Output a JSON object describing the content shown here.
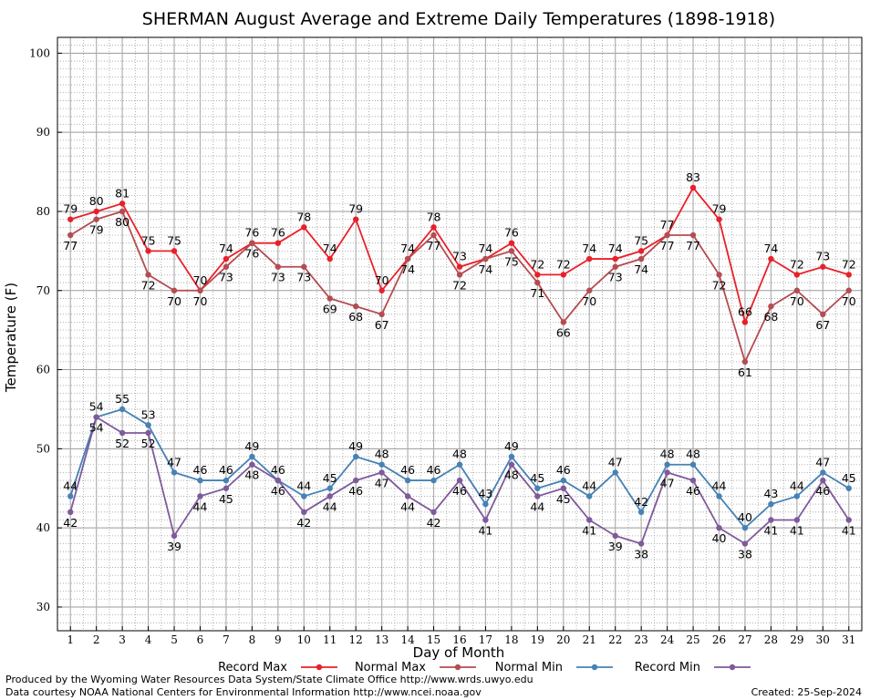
{
  "chart_data": {
    "type": "line",
    "title": "SHERMAN August Average and Extreme Daily Temperatures (1898-1918)",
    "xlabel": "Day of Month",
    "ylabel": "Temperature (F)",
    "ylim": [
      27,
      102
    ],
    "xlim": [
      0.5,
      31.5
    ],
    "yticks": [
      30,
      40,
      50,
      60,
      70,
      80,
      90,
      100
    ],
    "categories": [
      "1",
      "2",
      "3",
      "4",
      "5",
      "6",
      "7",
      "8",
      "9",
      "10",
      "11",
      "12",
      "13",
      "14",
      "15",
      "16",
      "17",
      "18",
      "19",
      "20",
      "21",
      "22",
      "23",
      "24",
      "25",
      "26",
      "27",
      "28",
      "29",
      "30",
      "31"
    ],
    "grid": true,
    "legend_position": "bottom",
    "series": [
      {
        "name": "Record Max",
        "color": "#e8202a",
        "values": [
          79,
          80,
          81,
          75,
          75,
          70,
          74,
          76,
          76,
          78,
          74,
          79,
          70,
          74,
          78,
          73,
          74,
          76,
          72,
          72,
          74,
          74,
          75,
          77,
          83,
          79,
          66,
          74,
          72,
          73,
          72
        ]
      },
      {
        "name": "Normal Max",
        "color": "#b44c52",
        "values": [
          77,
          79,
          80,
          72,
          70,
          70,
          73,
          76,
          73,
          73,
          69,
          68,
          67,
          74,
          77,
          72,
          74,
          75,
          71,
          66,
          70,
          73,
          74,
          77,
          77,
          72,
          61,
          68,
          70,
          67,
          70
        ]
      },
      {
        "name": "Normal Min",
        "color": "#4682b4",
        "values": [
          44,
          54,
          55,
          53,
          47,
          46,
          46,
          49,
          46,
          44,
          45,
          49,
          48,
          46,
          46,
          48,
          43,
          49,
          45,
          46,
          44,
          47,
          42,
          48,
          48,
          44,
          40,
          43,
          44,
          47,
          45
        ]
      },
      {
        "name": "Record Min",
        "color": "#7e5a9b",
        "values": [
          42,
          54,
          52,
          52,
          39,
          44,
          45,
          48,
          46,
          42,
          44,
          46,
          47,
          44,
          42,
          46,
          41,
          48,
          44,
          45,
          41,
          39,
          38,
          47,
          46,
          40,
          38,
          41,
          41,
          46,
          41
        ]
      }
    ],
    "footer_left": [
      "Produced by the Wyoming Water Resources Data System/State Climate Office http://www.wrds.uwyo.edu",
      "Data courtesy NOAA National Centers for Environmental Information http://www.ncei.noaa.gov"
    ],
    "footer_right": "Created:  25-Sep-2024"
  }
}
